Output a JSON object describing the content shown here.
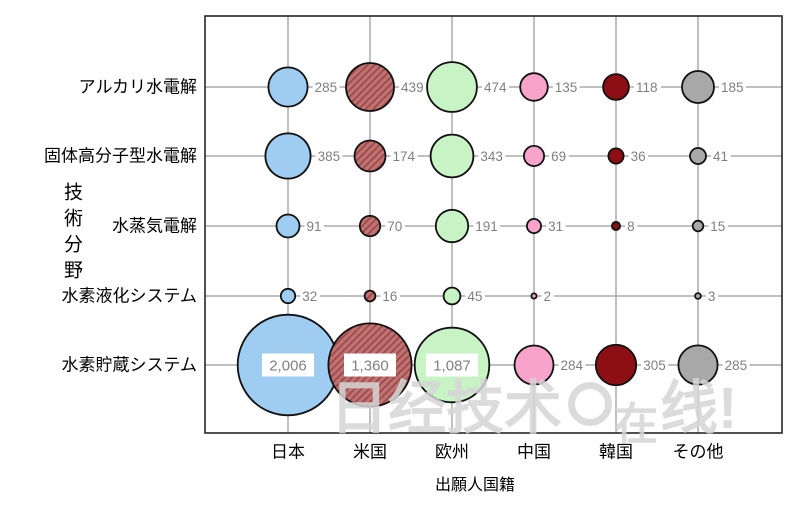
{
  "chart_data": {
    "type": "bubble",
    "xlabel": "出願人国籍",
    "ylabel": "技術分野",
    "legend": "none",
    "grid": true,
    "columns": [
      {
        "label": "日本",
        "color": "#9ECDF1"
      },
      {
        "label": "米国",
        "color": "#BE7272",
        "hatch": true,
        "hatch_color": "#9C4646"
      },
      {
        "label": "欧州",
        "color": "#C8F3C5"
      },
      {
        "label": "中国",
        "color": "#F8A3CC"
      },
      {
        "label": "韓国",
        "color": "#8D0F13"
      },
      {
        "label": "その他",
        "color": "#A8A8A8"
      }
    ],
    "rows": [
      "アルカリ水電解",
      "固体高分子型水電解",
      "水蒸気電解",
      "水素液化システム",
      "水素貯蔵システム"
    ],
    "values": [
      [
        285,
        439,
        474,
        135,
        118,
        185
      ],
      [
        385,
        174,
        343,
        69,
        36,
        41
      ],
      [
        91,
        70,
        191,
        31,
        8,
        15
      ],
      [
        32,
        16,
        45,
        2,
        null,
        3
      ],
      [
        2006,
        1360,
        1087,
        284,
        305,
        285
      ]
    ],
    "inside_label_threshold": 1000
  },
  "styles": {
    "grid_color": "#808080",
    "border_color": "#262626",
    "bubble_stroke": "#111111",
    "value_color": "#808080",
    "axis_label_color": "#000000"
  },
  "watermark": {
    "prefix": "日经技术",
    "lens_char": "在",
    "suffix": "线!"
  }
}
